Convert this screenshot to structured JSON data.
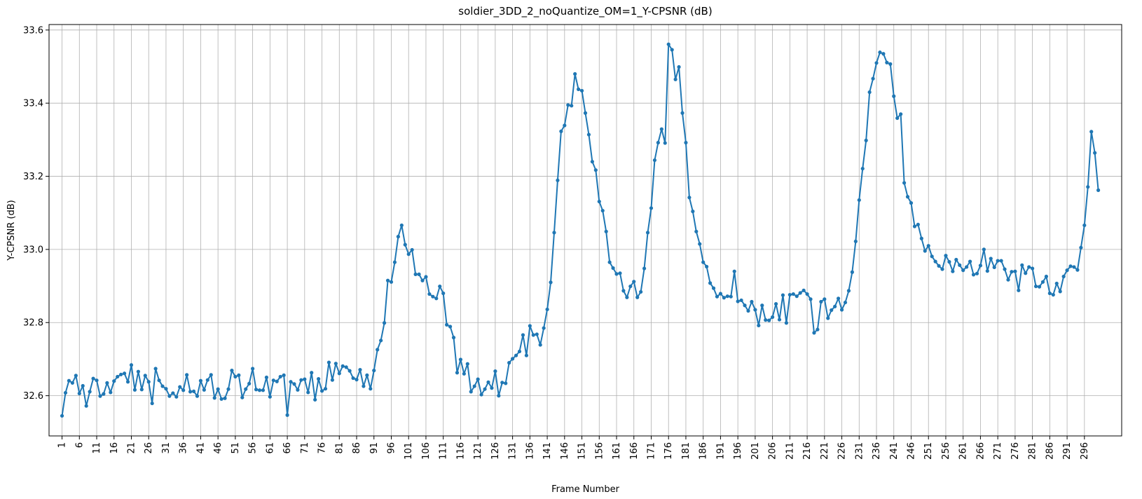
{
  "chart_data": {
    "type": "line",
    "title": "soldier_3DD_2_noQuantize_OM=1_Y-CPSNR (dB)",
    "xlabel": "Frame Number",
    "ylabel": "Y-CPSNR (dB)",
    "x_start": 1,
    "x_tick_step": 5,
    "x_tick_labels": [
      "1",
      "6",
      "11",
      "16",
      "21",
      "26",
      "31",
      "36",
      "41",
      "46",
      "51",
      "56",
      "61",
      "66",
      "71",
      "76",
      "81",
      "86",
      "91",
      "96",
      "101",
      "106",
      "111",
      "116",
      "121",
      "126",
      "131",
      "136",
      "141",
      "146",
      "151",
      "156",
      "161",
      "166",
      "171",
      "176",
      "181",
      "186",
      "191",
      "196",
      "201",
      "206",
      "211",
      "216",
      "221",
      "226",
      "231",
      "236",
      "241",
      "246",
      "251",
      "256",
      "261",
      "266",
      "271",
      "276",
      "281",
      "286",
      "291",
      "296"
    ],
    "y_tick_labels": [
      "32.6",
      "32.8",
      "33.0",
      "33.2",
      "33.4",
      "33.6"
    ],
    "y_ticks": [
      32.6,
      32.8,
      33.0,
      33.2,
      33.4,
      33.6
    ],
    "xlim": [
      -3.75,
      305.75
    ],
    "ylim": [
      32.49,
      33.615
    ],
    "grid": true,
    "line_color": "#1f77b4",
    "series": [
      {
        "values": [
          32.545,
          32.608,
          32.641,
          32.635,
          32.655,
          32.606,
          32.627,
          32.572,
          32.611,
          32.647,
          32.642,
          32.599,
          32.605,
          32.635,
          32.609,
          32.64,
          32.652,
          32.658,
          32.661,
          32.638,
          32.684,
          32.616,
          32.666,
          32.617,
          32.655,
          32.638,
          32.579,
          32.674,
          32.642,
          32.626,
          32.619,
          32.599,
          32.607,
          32.597,
          32.624,
          32.615,
          32.657,
          32.611,
          32.612,
          32.599,
          32.641,
          32.616,
          32.643,
          32.657,
          32.594,
          32.618,
          32.591,
          32.593,
          32.618,
          32.669,
          32.652,
          32.656,
          32.595,
          32.618,
          32.633,
          32.674,
          32.617,
          32.615,
          32.615,
          32.65,
          32.597,
          32.642,
          32.639,
          32.652,
          32.656,
          32.547,
          32.638,
          32.632,
          32.616,
          32.643,
          32.645,
          32.609,
          32.663,
          32.589,
          32.646,
          32.613,
          32.619,
          32.691,
          32.643,
          32.688,
          32.661,
          32.681,
          32.678,
          32.668,
          32.648,
          32.644,
          32.671,
          32.626,
          32.656,
          32.619,
          32.669,
          32.726,
          32.751,
          32.799,
          32.915,
          32.911,
          32.965,
          33.035,
          33.066,
          33.013,
          32.987,
          32.999,
          32.932,
          32.932,
          32.915,
          32.925,
          32.878,
          32.871,
          32.866,
          32.899,
          32.88,
          32.794,
          32.789,
          32.759,
          32.663,
          32.699,
          32.66,
          32.687,
          32.611,
          32.626,
          32.645,
          32.603,
          32.618,
          32.637,
          32.621,
          32.667,
          32.6,
          32.636,
          32.634,
          32.69,
          32.701,
          32.71,
          32.721,
          32.766,
          32.71,
          32.791,
          32.766,
          32.768,
          32.739,
          32.785,
          32.836,
          32.91,
          33.046,
          33.189,
          33.323,
          33.339,
          33.395,
          33.393,
          33.48,
          33.438,
          33.434,
          33.373,
          33.314,
          33.24,
          33.217,
          33.131,
          33.106,
          33.049,
          32.965,
          32.949,
          32.933,
          32.935,
          32.887,
          32.869,
          32.899,
          32.912,
          32.869,
          32.884,
          32.948,
          33.046,
          33.113,
          33.244,
          33.292,
          33.329,
          33.291,
          33.561,
          33.546,
          33.465,
          33.499,
          33.373,
          33.292,
          33.142,
          33.104,
          33.049,
          33.015,
          32.965,
          32.953,
          32.908,
          32.894,
          32.871,
          32.879,
          32.868,
          32.872,
          32.871,
          32.94,
          32.858,
          32.861,
          32.847,
          32.832,
          32.857,
          32.835,
          32.792,
          32.847,
          32.807,
          32.806,
          32.815,
          32.851,
          32.808,
          32.875,
          32.799,
          32.876,
          32.878,
          32.872,
          32.881,
          32.888,
          32.878,
          32.864,
          32.772,
          32.781,
          32.857,
          32.864,
          32.812,
          32.834,
          32.844,
          32.866,
          32.835,
          32.855,
          32.887,
          32.938,
          33.022,
          33.135,
          33.221,
          33.298,
          33.43,
          33.467,
          33.51,
          33.539,
          33.535,
          33.511,
          33.507,
          33.419,
          33.359,
          33.37,
          33.182,
          33.144,
          33.127,
          33.063,
          33.068,
          33.03,
          32.996,
          33.01,
          32.981,
          32.967,
          32.955,
          32.946,
          32.983,
          32.966,
          32.94,
          32.972,
          32.957,
          32.943,
          32.952,
          32.967,
          32.931,
          32.934,
          32.956,
          33.0,
          32.941,
          32.975,
          32.951,
          32.969,
          32.969,
          32.946,
          32.917,
          32.939,
          32.94,
          32.888,
          32.957,
          32.935,
          32.952,
          32.948,
          32.899,
          32.898,
          32.911,
          32.926,
          32.88,
          32.876,
          32.907,
          32.885,
          32.926,
          32.943,
          32.954,
          32.952,
          32.944,
          33.005,
          33.066,
          33.171,
          33.322,
          33.264,
          33.162
        ]
      }
    ]
  }
}
